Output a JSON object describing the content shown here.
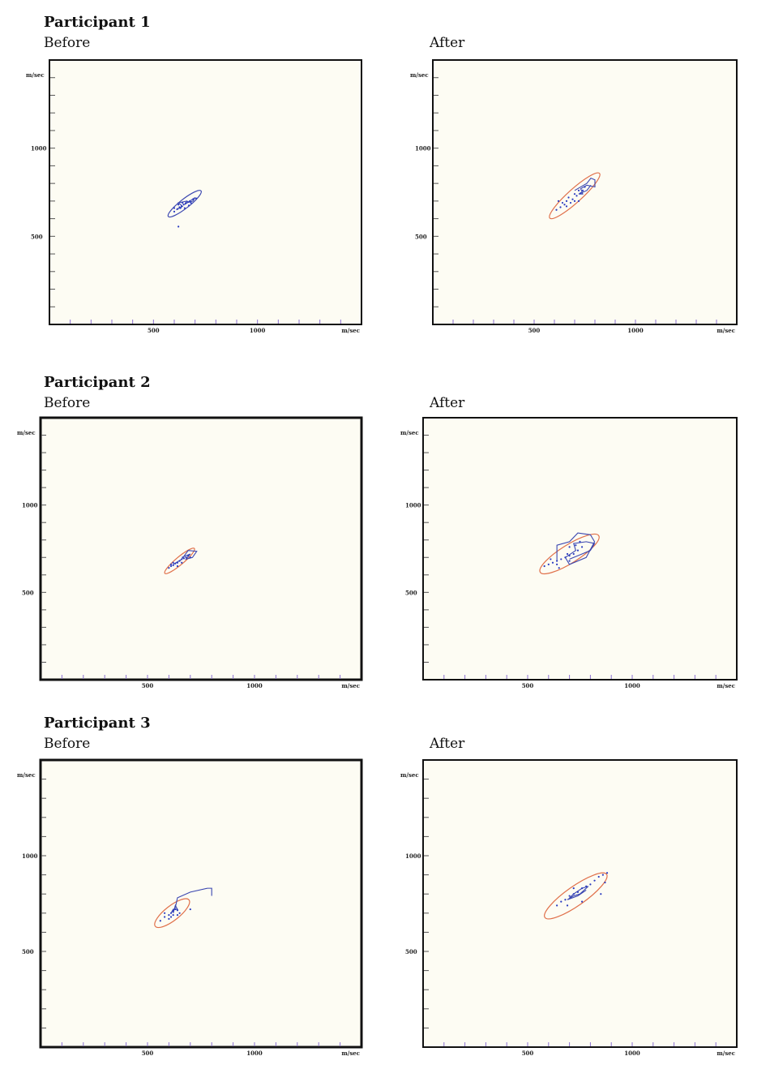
{
  "participants": [
    {
      "title": "Participant 1",
      "before_label": "Before",
      "after_label": "After"
    },
    {
      "title": "Participant 2",
      "before_label": "Before",
      "after_label": "After"
    },
    {
      "title": "Participant 3",
      "before_label": "Before",
      "after_label": "After"
    }
  ],
  "colors": {
    "background": "#fdfcf3",
    "frame": "#111111",
    "ellipse_blue": "#3a46b0",
    "ellipse_orange": "#e0704a",
    "trace": "#3a46b0",
    "points": "#2b3cc0",
    "ticks": "#8a6fd0"
  },
  "chart_data": [
    {
      "type": "scatter",
      "participant": "Participant 1",
      "phase": "Before",
      "xlabel": "m/sec",
      "ylabel": "m/sec",
      "xlim": [
        0,
        1500
      ],
      "ylim": [
        0,
        1500
      ],
      "xticks": [
        500,
        1000
      ],
      "yticks": [
        500,
        1000
      ],
      "grid": false,
      "ellipse": {
        "cx": 650,
        "cy": 685,
        "rx": 100,
        "ry": 26,
        "angle": 38,
        "color": "ellipse_blue"
      },
      "trace": [
        [
          610,
          650
        ],
        [
          640,
          670
        ],
        [
          620,
          690
        ],
        [
          660,
          700
        ],
        [
          650,
          680
        ],
        [
          700,
          720
        ],
        [
          690,
          700
        ],
        [
          660,
          690
        ]
      ],
      "points": [
        [
          600,
          640
        ],
        [
          615,
          655
        ],
        [
          625,
          665
        ],
        [
          635,
          670
        ],
        [
          645,
          680
        ],
        [
          655,
          688
        ],
        [
          665,
          695
        ],
        [
          675,
          700
        ],
        [
          690,
          710
        ],
        [
          705,
          715
        ],
        [
          620,
          680
        ],
        [
          640,
          690
        ],
        [
          600,
          660
        ],
        [
          650,
          660
        ],
        [
          670,
          675
        ],
        [
          680,
          690
        ],
        [
          630,
          660
        ],
        [
          620,
          555
        ]
      ]
    },
    {
      "type": "scatter",
      "participant": "Participant 1",
      "phase": "After",
      "xlabel": "m/sec",
      "ylabel": "m/sec",
      "xlim": [
        0,
        1500
      ],
      "ylim": [
        0,
        1500
      ],
      "xticks": [
        500,
        1000
      ],
      "yticks": [
        500,
        1000
      ],
      "grid": false,
      "ellipse": {
        "cx": 700,
        "cy": 730,
        "rx": 165,
        "ry": 38,
        "angle": 42,
        "color": "ellipse_orange"
      },
      "trace": [
        [
          700,
          760
        ],
        [
          760,
          800
        ],
        [
          780,
          830
        ],
        [
          800,
          820
        ],
        [
          800,
          780
        ],
        [
          760,
          790
        ],
        [
          730,
          770
        ],
        [
          740,
          740
        ],
        [
          720,
          740
        ],
        [
          760,
          760
        ],
        [
          780,
          790
        ]
      ],
      "points": [
        [
          610,
          650
        ],
        [
          630,
          665
        ],
        [
          650,
          680
        ],
        [
          660,
          700
        ],
        [
          670,
          720
        ],
        [
          690,
          710
        ],
        [
          700,
          740
        ],
        [
          710,
          730
        ],
        [
          720,
          760
        ],
        [
          730,
          745
        ],
        [
          740,
          760
        ],
        [
          750,
          780
        ],
        [
          680,
          690
        ],
        [
          700,
          700
        ],
        [
          660,
          670
        ],
        [
          720,
          700
        ],
        [
          640,
          690
        ],
        [
          620,
          700
        ]
      ]
    },
    {
      "type": "scatter",
      "participant": "Participant 2",
      "phase": "Before",
      "xlabel": "m/sec",
      "ylabel": "m/sec",
      "xlim": [
        0,
        1500
      ],
      "ylim": [
        0,
        1500
      ],
      "xticks": [
        500,
        1000
      ],
      "yticks": [
        500,
        1000
      ],
      "grid": false,
      "ellipse": {
        "cx": 650,
        "cy": 680,
        "rx": 90,
        "ry": 22,
        "angle": 40,
        "color": "ellipse_orange"
      },
      "trace": [
        [
          620,
          660
        ],
        [
          660,
          690
        ],
        [
          690,
          740
        ],
        [
          730,
          735
        ],
        [
          710,
          700
        ],
        [
          680,
          690
        ],
        [
          700,
          720
        ],
        [
          660,
          700
        ]
      ],
      "points": [
        [
          600,
          640
        ],
        [
          610,
          650
        ],
        [
          620,
          655
        ],
        [
          630,
          665
        ],
        [
          640,
          670
        ],
        [
          650,
          680
        ],
        [
          660,
          690
        ],
        [
          670,
          695
        ],
        [
          680,
          700
        ],
        [
          690,
          710
        ],
        [
          640,
          650
        ],
        [
          660,
          670
        ],
        [
          620,
          670
        ],
        [
          700,
          700
        ],
        [
          610,
          660
        ]
      ]
    },
    {
      "type": "scatter",
      "participant": "Participant 2",
      "phase": "After",
      "xlabel": "m/sec",
      "ylabel": "m/sec",
      "xlim": [
        0,
        1500
      ],
      "ylim": [
        0,
        1500
      ],
      "xticks": [
        500,
        1000
      ],
      "yticks": [
        500,
        1000
      ],
      "grid": false,
      "ellipse": {
        "cx": 700,
        "cy": 720,
        "rx": 165,
        "ry": 52,
        "angle": 32,
        "color": "ellipse_orange"
      },
      "trace": [
        [
          640,
          680
        ],
        [
          640,
          770
        ],
        [
          700,
          790
        ],
        [
          740,
          840
        ],
        [
          800,
          830
        ],
        [
          820,
          790
        ],
        [
          780,
          700
        ],
        [
          700,
          660
        ],
        [
          680,
          700
        ],
        [
          730,
          740
        ],
        [
          720,
          780
        ],
        [
          780,
          790
        ],
        [
          820,
          780
        ],
        [
          800,
          740
        ],
        [
          760,
          720
        ],
        [
          700,
          690
        ]
      ],
      "points": [
        [
          580,
          650
        ],
        [
          600,
          660
        ],
        [
          620,
          670
        ],
        [
          640,
          680
        ],
        [
          660,
          690
        ],
        [
          680,
          700
        ],
        [
          700,
          710
        ],
        [
          720,
          720
        ],
        [
          740,
          740
        ],
        [
          760,
          760
        ],
        [
          650,
          640
        ],
        [
          700,
          680
        ],
        [
          690,
          720
        ],
        [
          610,
          690
        ],
        [
          730,
          770
        ],
        [
          700,
          760
        ],
        [
          750,
          790
        ],
        [
          640,
          660
        ]
      ]
    },
    {
      "type": "scatter",
      "participant": "Participant 3",
      "phase": "Before",
      "xlabel": "m/sec",
      "ylabel": "m/sec",
      "xlim": [
        0,
        1500
      ],
      "ylim": [
        0,
        1500
      ],
      "xticks": [
        500,
        1000
      ],
      "yticks": [
        500,
        1000
      ],
      "grid": false,
      "ellipse": {
        "cx": 615,
        "cy": 700,
        "rx": 100,
        "ry": 38,
        "angle": 38,
        "color": "ellipse_orange"
      },
      "trace": [
        [
          620,
          700
        ],
        [
          630,
          740
        ],
        [
          640,
          720
        ],
        [
          620,
          720
        ],
        [
          610,
          700
        ],
        [
          630,
          730
        ],
        [
          640,
          780
        ],
        [
          700,
          810
        ],
        [
          780,
          830
        ],
        [
          800,
          830
        ],
        [
          800,
          790
        ]
      ],
      "points": [
        [
          560,
          660
        ],
        [
          580,
          680
        ],
        [
          600,
          690
        ],
        [
          610,
          700
        ],
        [
          620,
          710
        ],
        [
          630,
          720
        ],
        [
          640,
          715
        ],
        [
          600,
          670
        ],
        [
          650,
          700
        ],
        [
          620,
          690
        ],
        [
          700,
          720
        ],
        [
          610,
          680
        ],
        [
          580,
          700
        ],
        [
          640,
          690
        ]
      ]
    },
    {
      "type": "scatter",
      "participant": "Participant 3",
      "phase": "After",
      "xlabel": "m/sec",
      "ylabel": "m/sec",
      "xlim": [
        0,
        1500
      ],
      "ylim": [
        0,
        1500
      ],
      "xticks": [
        500,
        1000
      ],
      "yticks": [
        500,
        1000
      ],
      "grid": false,
      "ellipse": {
        "cx": 730,
        "cy": 790,
        "rx": 180,
        "ry": 50,
        "angle": 35,
        "color": "ellipse_orange"
      },
      "trace": [
        [
          700,
          780
        ],
        [
          720,
          800
        ],
        [
          760,
          830
        ],
        [
          790,
          840
        ],
        [
          750,
          800
        ],
        [
          720,
          790
        ],
        [
          690,
          770
        ],
        [
          740,
          790
        ],
        [
          780,
          820
        ]
      ],
      "points": [
        [
          640,
          740
        ],
        [
          660,
          760
        ],
        [
          680,
          770
        ],
        [
          700,
          790
        ],
        [
          720,
          800
        ],
        [
          740,
          810
        ],
        [
          760,
          830
        ],
        [
          780,
          840
        ],
        [
          800,
          850
        ],
        [
          820,
          870
        ],
        [
          840,
          890
        ],
        [
          860,
          900
        ],
        [
          880,
          910
        ],
        [
          870,
          860
        ],
        [
          850,
          800
        ],
        [
          760,
          760
        ],
        [
          690,
          740
        ],
        [
          720,
          830
        ]
      ]
    }
  ]
}
